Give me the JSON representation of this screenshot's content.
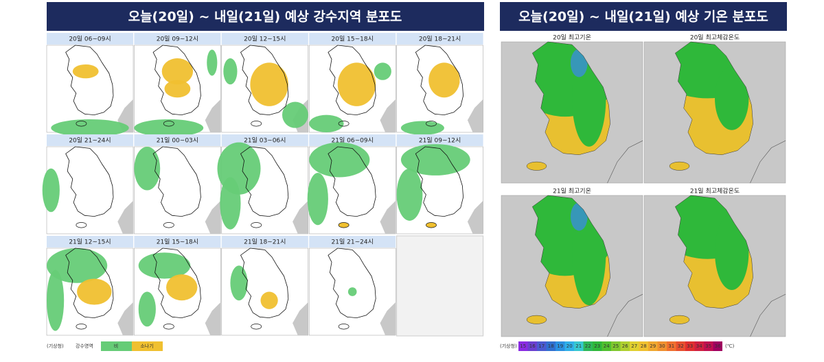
{
  "precipitation": {
    "title": "오늘(20일) ~ 내일(21일) 예상 강수지역 분포도",
    "panels": [
      "20일 06~09시",
      "20일 09~12시",
      "20일 12~15시",
      "20일 15~18시",
      "20일 18~21시",
      "20일 21~24시",
      "21일 00~03시",
      "21일 03~06시",
      "21일 06~09시",
      "21일 09~12시",
      "21일 12~15시",
      "21일 15~18시",
      "21일 18~21시",
      "21일 21~24시"
    ],
    "legend": {
      "source": "(기상청)",
      "label": "강수영역",
      "items": [
        "비",
        "소나기"
      ]
    }
  },
  "temperature": {
    "title": "오늘(20일) ~ 내일(21일) 예상 기온 분포도",
    "panels": [
      "20일 최고기온",
      "20일 최고체감온도",
      "21일 최고기온",
      "21일 최고체감온도"
    ],
    "legend": {
      "source": "(기상청)",
      "unit": "(℃)",
      "scale": [
        15,
        16,
        17,
        18,
        19,
        20,
        21,
        22,
        23,
        24,
        25,
        26,
        27,
        28,
        29,
        30,
        31,
        32,
        33,
        34,
        35,
        36
      ]
    }
  }
}
